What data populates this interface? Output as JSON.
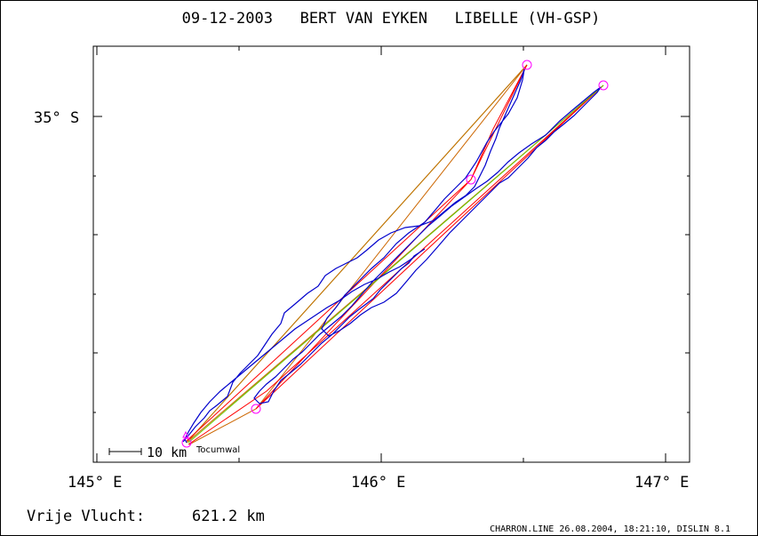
{
  "title": "09-12-2003   BERT VAN EYKEN   LIBELLE (VH-GSP)",
  "axes": {
    "y_label": "35° S",
    "x_labels": [
      "145° E",
      "146° E",
      "147° E"
    ]
  },
  "scale_bar_label": "10 km",
  "place_label": "Tocumwal",
  "distance": {
    "label": "Vrije Vlucht:",
    "value": "621.2 km"
  },
  "footer": "CHARRON.LINE 26.08.2004, 18:21:10, DISLIN 8.1",
  "colors": {
    "track": "#0000cc",
    "turnpoint": "#ff00ff",
    "leg_red": "#ff0000",
    "leg_orange": "#cc6600",
    "leg_green": "#66cc00"
  }
}
